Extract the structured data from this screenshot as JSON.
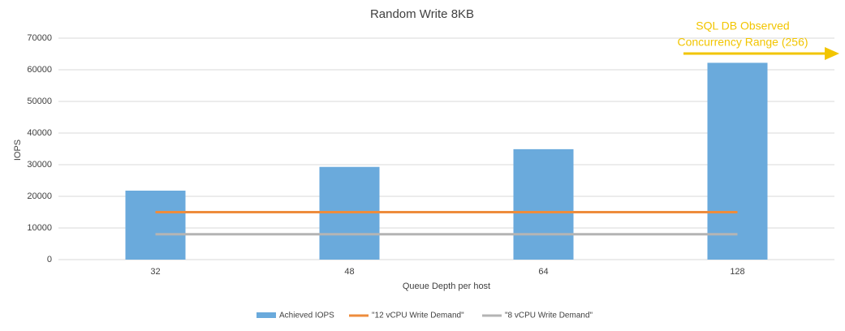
{
  "chart_data": {
    "type": "bar",
    "title": "Random Write 8KB",
    "x_label": "Queue Depth per host",
    "y_label": "IOPS",
    "categories": [
      "32",
      "48",
      "64",
      "128"
    ],
    "series": [
      {
        "name": "Achieved IOPS",
        "type": "bar",
        "color": "#6aaadc",
        "values": [
          21800,
          29300,
          34900,
          62200
        ]
      },
      {
        "name": "\"12 vCPU Write Demand\"",
        "type": "line",
        "color": "#ee8c3c",
        "values": [
          15000,
          15000,
          15000,
          15000
        ]
      },
      {
        "name": "\"8 vCPU Write Demand\"",
        "type": "line",
        "color": "#b4b4b4",
        "values": [
          8000,
          8000,
          8000,
          8000
        ]
      }
    ],
    "ylim": [
      0,
      70000
    ],
    "yticks": [
      0,
      10000,
      20000,
      30000,
      40000,
      50000,
      60000,
      70000
    ],
    "grid": true,
    "legend": "bottom",
    "annotation": {
      "lines": [
        "SQL DB Observed",
        "Concurrency Range (256)"
      ],
      "color": "#f2c500"
    }
  }
}
